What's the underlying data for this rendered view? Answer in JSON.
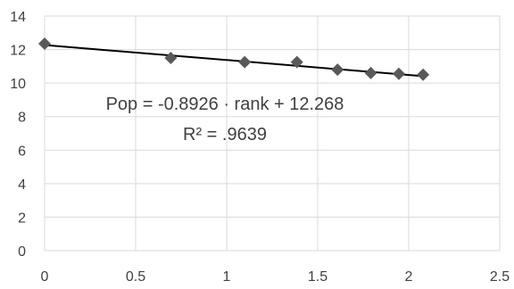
{
  "chart_data": {
    "type": "scatter",
    "title": "",
    "xlabel": "",
    "ylabel": "",
    "xlim": [
      0,
      2.5
    ],
    "ylim": [
      0,
      14
    ],
    "x_ticks": [
      0,
      0.5,
      1,
      1.5,
      2,
      2.5
    ],
    "y_ticks": [
      0,
      2,
      4,
      6,
      8,
      10,
      12,
      14
    ],
    "x_tick_labels": [
      "0",
      "0.5",
      "1",
      "1.5",
      "2",
      "2.5"
    ],
    "y_tick_labels": [
      "0",
      "2",
      "4",
      "6",
      "8",
      "10",
      "12",
      "14"
    ],
    "grid": true,
    "legend": "none",
    "series": [
      {
        "marker": "diamond",
        "color": "#595959",
        "points": [
          {
            "x": 0,
            "y": 12.35
          },
          {
            "x": 0.693,
            "y": 11.5
          },
          {
            "x": 1.099,
            "y": 11.25
          },
          {
            "x": 1.386,
            "y": 11.25
          },
          {
            "x": 1.609,
            "y": 10.8
          },
          {
            "x": 1.792,
            "y": 10.6
          },
          {
            "x": 1.946,
            "y": 10.55
          },
          {
            "x": 2.079,
            "y": 10.5
          }
        ]
      }
    ],
    "trendline": {
      "type": "linear",
      "slope": -0.8926,
      "intercept": 12.268,
      "x_range": [
        0,
        2.079
      ],
      "color": "#000000"
    },
    "annotations": [
      "Pop = -0.8926 · rank + 12.268",
      "R² = .9639"
    ],
    "colors": {
      "grid": "#d9d9d9",
      "marker": "#595959",
      "trendline": "#000000",
      "text": "#404040"
    }
  }
}
